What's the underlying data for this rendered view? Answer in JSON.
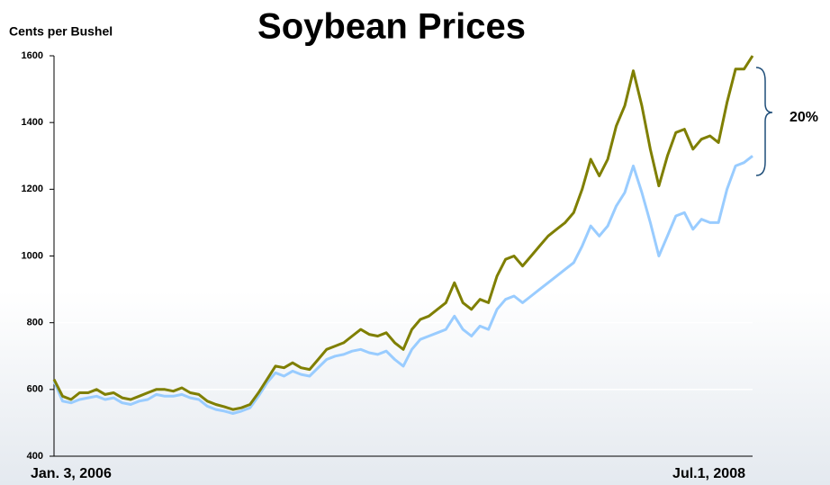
{
  "chart_data": {
    "type": "line",
    "title": "Soybean Prices",
    "y_label": "Cents per Bushel",
    "annotation": "20%",
    "categories": [
      "Jan. 3, 2006",
      null,
      null,
      null,
      null,
      null,
      null,
      null,
      null,
      null,
      null,
      null,
      null,
      null,
      null,
      null,
      null,
      null,
      null,
      null,
      null,
      null,
      null,
      null,
      null,
      null,
      null,
      null,
      null,
      null,
      null,
      null,
      null,
      null,
      null,
      null,
      null,
      null,
      null,
      null,
      null,
      null,
      null,
      null,
      null,
      null,
      null,
      null,
      null,
      null,
      null,
      null,
      null,
      null,
      null,
      null,
      null,
      null,
      null,
      null,
      null,
      null,
      null,
      null,
      null,
      null,
      null,
      null,
      null,
      null,
      null,
      null,
      null,
      null,
      null,
      null,
      null,
      null,
      null,
      null,
      null,
      null,
      "Jul.1, 2008"
    ],
    "series": [
      {
        "color": "#7f7f00",
        "values": [
          630,
          580,
          570,
          590,
          590,
          600,
          585,
          590,
          575,
          570,
          580,
          590,
          600,
          600,
          595,
          605,
          590,
          585,
          565,
          555,
          548,
          540,
          545,
          555,
          590,
          630,
          670,
          665,
          680,
          665,
          660,
          690,
          720,
          730,
          740,
          760,
          780,
          765,
          760,
          770,
          740,
          720,
          780,
          810,
          820,
          840,
          860,
          920,
          860,
          840,
          870,
          860,
          940,
          990,
          1000,
          970,
          1000,
          1030,
          1060,
          1080,
          1100,
          1130,
          1200,
          1290,
          1240,
          1290,
          1390,
          1450,
          1555,
          1450,
          1320,
          1210,
          1300,
          1370,
          1380,
          1320,
          1350,
          1360,
          1340,
          1460,
          1560,
          1560,
          1600
        ]
      },
      {
        "color": "#99ccff",
        "values": [
          625,
          565,
          560,
          570,
          575,
          580,
          570,
          575,
          560,
          555,
          565,
          570,
          585,
          580,
          580,
          585,
          575,
          570,
          550,
          540,
          535,
          528,
          535,
          545,
          580,
          620,
          650,
          640,
          655,
          645,
          640,
          665,
          690,
          700,
          705,
          715,
          720,
          710,
          705,
          715,
          690,
          670,
          720,
          750,
          760,
          770,
          780,
          820,
          780,
          760,
          790,
          780,
          840,
          870,
          880,
          860,
          880,
          900,
          920,
          940,
          960,
          980,
          1030,
          1090,
          1060,
          1090,
          1150,
          1190,
          1270,
          1190,
          1100,
          1000,
          1060,
          1120,
          1130,
          1080,
          1110,
          1100,
          1100,
          1200,
          1270,
          1280,
          1300
        ]
      }
    ],
    "ylim": [
      400,
      1600
    ],
    "yticks": [
      400,
      600,
      800,
      1000,
      1200,
      1400,
      1600
    ],
    "grid": true
  }
}
